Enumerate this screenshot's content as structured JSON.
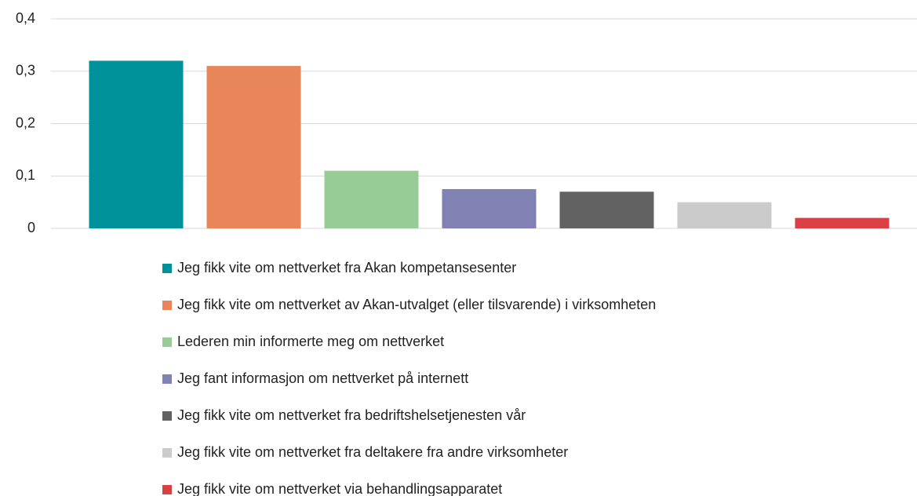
{
  "chart_data": {
    "type": "bar",
    "series": [
      {
        "name": "Jeg fikk vite om nettverket fra Akan kompetansesenter",
        "color": "#00929a",
        "values": [
          0.32
        ]
      },
      {
        "name": "Jeg fikk vite om nettverket av Akan-utvalget (eller tilsvarende) i virksomheten",
        "color": "#e8865a",
        "values": [
          0.31
        ]
      },
      {
        "name": "Lederen min informerte meg om nettverket",
        "color": "#98cc97",
        "values": [
          0.11
        ]
      },
      {
        "name": "Jeg fant informasjon om nettverket på internett",
        "color": "#8181b3",
        "values": [
          0.075
        ]
      },
      {
        "name": "Jeg fikk vite om nettverket fra bedriftshelsetjenesten vår",
        "color": "#626262",
        "values": [
          0.07
        ]
      },
      {
        "name": "Jeg fikk vite om nettverket fra deltakere fra andre virksomheter",
        "color": "#cbcbcb",
        "values": [
          0.05
        ]
      },
      {
        "name": "Jeg fikk vite om nettverket via behandlingsapparatet",
        "color": "#db3f46",
        "values": [
          0.02
        ]
      }
    ],
    "ylim": [
      0,
      0.4
    ],
    "yticks": [
      0,
      {
        "value": 0.1,
        "label": "0,1"
      },
      {
        "value": 0.2,
        "label": "0,2"
      },
      {
        "value": 0.3,
        "label": "0,3"
      },
      {
        "value": 0.4,
        "label": "0,4"
      }
    ],
    "grid": true
  }
}
